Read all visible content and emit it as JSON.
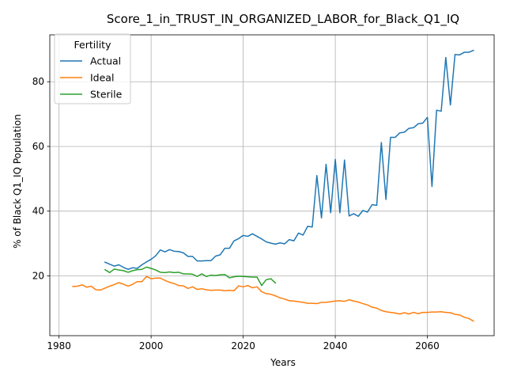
{
  "chart_data": {
    "type": "line",
    "title": "Score_1_in_TRUST_IN_ORGANIZED_LABOR_for_Black_Q1_IQ",
    "xlabel": "Years",
    "ylabel": "% of Black Q1_IQ Population",
    "xlim": [
      1978,
      2074.5
    ],
    "ylim": [
      1.5,
      94.5
    ],
    "xticks": [
      1980,
      2000,
      2020,
      2040,
      2060
    ],
    "yticks": [
      20,
      40,
      60,
      80
    ],
    "grid": true,
    "legend": {
      "title": "Fertility",
      "position": "top-left"
    },
    "series": [
      {
        "name": "Actual",
        "color": "#1f77b4",
        "x": [
          1990,
          1991,
          1992,
          1993,
          1994,
          1995,
          1996,
          1997,
          1998,
          1999,
          2000,
          2001,
          2002,
          2003,
          2004,
          2005,
          2006,
          2007,
          2008,
          2009,
          2010,
          2011,
          2012,
          2013,
          2014,
          2015,
          2016,
          2017,
          2018,
          2019,
          2020,
          2021,
          2022,
          2023,
          2024,
          2025,
          2026,
          2027,
          2028,
          2029,
          2030,
          2031,
          2032,
          2033,
          2034,
          2035,
          2036,
          2037,
          2038,
          2039,
          2040,
          2041,
          2042,
          2043,
          2044,
          2045,
          2046,
          2047,
          2048,
          2049,
          2050,
          2051,
          2052,
          2053,
          2054,
          2055,
          2056,
          2057,
          2058,
          2059,
          2060,
          2061,
          2062,
          2063,
          2064,
          2065,
          2066,
          2067,
          2068,
          2069,
          2070
        ],
        "y": [
          24.2,
          23.6,
          23.0,
          23.4,
          22.6,
          22.0,
          22.5,
          22.3,
          23.4,
          24.3,
          25.1,
          26.2,
          28.0,
          27.4,
          28.1,
          27.6,
          27.5,
          27.1,
          26.0,
          26.0,
          24.6,
          24.6,
          24.7,
          24.7,
          26.1,
          26.5,
          28.5,
          28.5,
          30.8,
          31.5,
          32.5,
          32.2,
          33.0,
          32.2,
          31.4,
          30.5,
          30.1,
          29.8,
          30.2,
          29.9,
          31.2,
          30.8,
          33.2,
          32.6,
          35.3,
          35.1,
          51.0,
          37.9,
          54.5,
          39.5,
          56.0,
          39.5,
          55.8,
          38.5,
          39.2,
          38.4,
          40.2,
          39.7,
          42.0,
          41.8,
          61.2,
          43.6,
          62.8,
          62.8,
          64.2,
          64.4,
          65.6,
          65.8,
          67.0,
          67.2,
          69.0,
          47.6,
          71.2,
          70.9,
          87.5,
          72.8,
          88.4,
          88.3,
          89.1,
          89.1,
          89.7
        ]
      },
      {
        "name": "Ideal",
        "color": "#ff7f0e",
        "x": [
          1983,
          1984,
          1985,
          1986,
          1987,
          1988,
          1989,
          1990,
          1991,
          1992,
          1993,
          1994,
          1995,
          1996,
          1997,
          1998,
          1999,
          2000,
          2001,
          2002,
          2003,
          2004,
          2005,
          2006,
          2007,
          2008,
          2009,
          2010,
          2011,
          2012,
          2013,
          2014,
          2015,
          2016,
          2017,
          2018,
          2019,
          2020,
          2021,
          2022,
          2023,
          2024,
          2025,
          2026,
          2027,
          2028,
          2029,
          2030,
          2031,
          2032,
          2033,
          2034,
          2035,
          2036,
          2037,
          2038,
          2039,
          2040,
          2041,
          2042,
          2043,
          2044,
          2045,
          2046,
          2047,
          2048,
          2049,
          2050,
          2051,
          2052,
          2053,
          2054,
          2055,
          2056,
          2057,
          2058,
          2059,
          2060,
          2061,
          2062,
          2063,
          2064,
          2065,
          2066,
          2067,
          2068,
          2069,
          2070
        ],
        "y": [
          16.7,
          16.8,
          17.2,
          16.5,
          16.8,
          15.7,
          15.6,
          16.2,
          16.8,
          17.3,
          17.9,
          17.4,
          16.8,
          17.4,
          18.2,
          18.2,
          19.8,
          19.1,
          19.3,
          19.3,
          18.6,
          18.0,
          17.6,
          17.0,
          16.9,
          16.1,
          16.6,
          15.8,
          16.0,
          15.7,
          15.5,
          15.6,
          15.6,
          15.4,
          15.5,
          15.4,
          16.9,
          16.6,
          17.0,
          16.3,
          16.6,
          15.1,
          14.5,
          14.3,
          13.8,
          13.2,
          12.8,
          12.3,
          12.2,
          12.0,
          11.8,
          11.5,
          11.5,
          11.4,
          11.8,
          11.8,
          12.0,
          12.2,
          12.3,
          12.1,
          12.6,
          12.2,
          11.9,
          11.4,
          11.0,
          10.3,
          10.0,
          9.3,
          8.9,
          8.7,
          8.5,
          8.2,
          8.6,
          8.2,
          8.7,
          8.3,
          8.7,
          8.7,
          8.8,
          8.8,
          8.9,
          8.7,
          8.6,
          8.1,
          7.9,
          7.2,
          6.8,
          6.0
        ]
      },
      {
        "name": "Sterile",
        "color": "#2ca02c",
        "x": [
          1990,
          1991,
          1992,
          1993,
          1994,
          1995,
          1996,
          1997,
          1998,
          1999,
          2000,
          2001,
          2002,
          2003,
          2004,
          2005,
          2006,
          2007,
          2008,
          2009,
          2010,
          2011,
          2012,
          2013,
          2014,
          2015,
          2016,
          2017,
          2018,
          2019,
          2020,
          2021,
          2022,
          2023,
          2024,
          2025,
          2026,
          2027
        ],
        "y": [
          21.9,
          21.0,
          22.1,
          21.8,
          21.6,
          21.1,
          21.6,
          21.9,
          22.0,
          22.7,
          22.3,
          21.8,
          21.1,
          21.0,
          21.2,
          21.0,
          21.1,
          20.6,
          20.6,
          20.5,
          19.8,
          20.6,
          19.8,
          20.2,
          20.1,
          20.3,
          20.4,
          19.4,
          19.7,
          19.9,
          19.8,
          19.7,
          19.6,
          19.6,
          17.0,
          18.8,
          19.1,
          17.8
        ]
      }
    ]
  }
}
